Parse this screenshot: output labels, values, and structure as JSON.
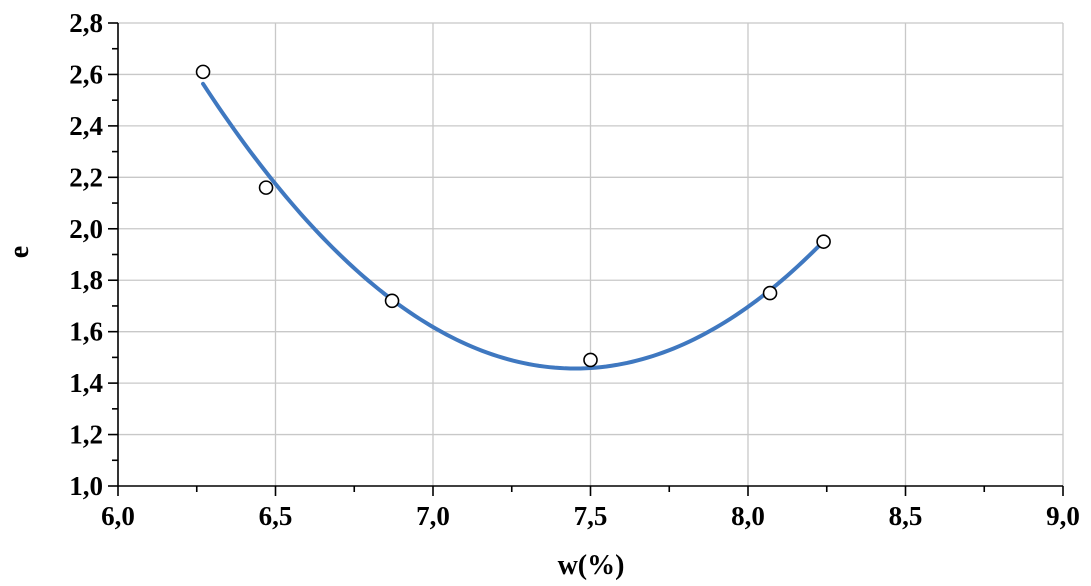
{
  "chart_data": {
    "type": "scatter",
    "title": "",
    "xlabel": "w(%)",
    "ylabel": "e",
    "xlim": [
      6.0,
      9.0
    ],
    "ylim": [
      1.0,
      2.8
    ],
    "x_major_step": 0.5,
    "y_major_step": 0.2,
    "xtick_labels": [
      "6,0",
      "6,5",
      "7,0",
      "7,5",
      "8,0",
      "8,5",
      "9,0"
    ],
    "ytick_labels": [
      "1,0",
      "1,2",
      "1,4",
      "1,6",
      "1,8",
      "2,0",
      "2,2",
      "2,4",
      "2,6",
      "2,8"
    ],
    "grid": true,
    "legend": "none",
    "series": [
      {
        "marker": "open-circle",
        "x": [
          6.27,
          6.47,
          6.87,
          7.5,
          8.07,
          8.24
        ],
        "y": [
          2.61,
          2.16,
          1.72,
          1.49,
          1.75,
          1.95
        ]
      }
    ],
    "trendline": {
      "kind": "polynomial-2",
      "color": "#3f78c0",
      "x_range": [
        6.27,
        8.24
      ]
    }
  }
}
